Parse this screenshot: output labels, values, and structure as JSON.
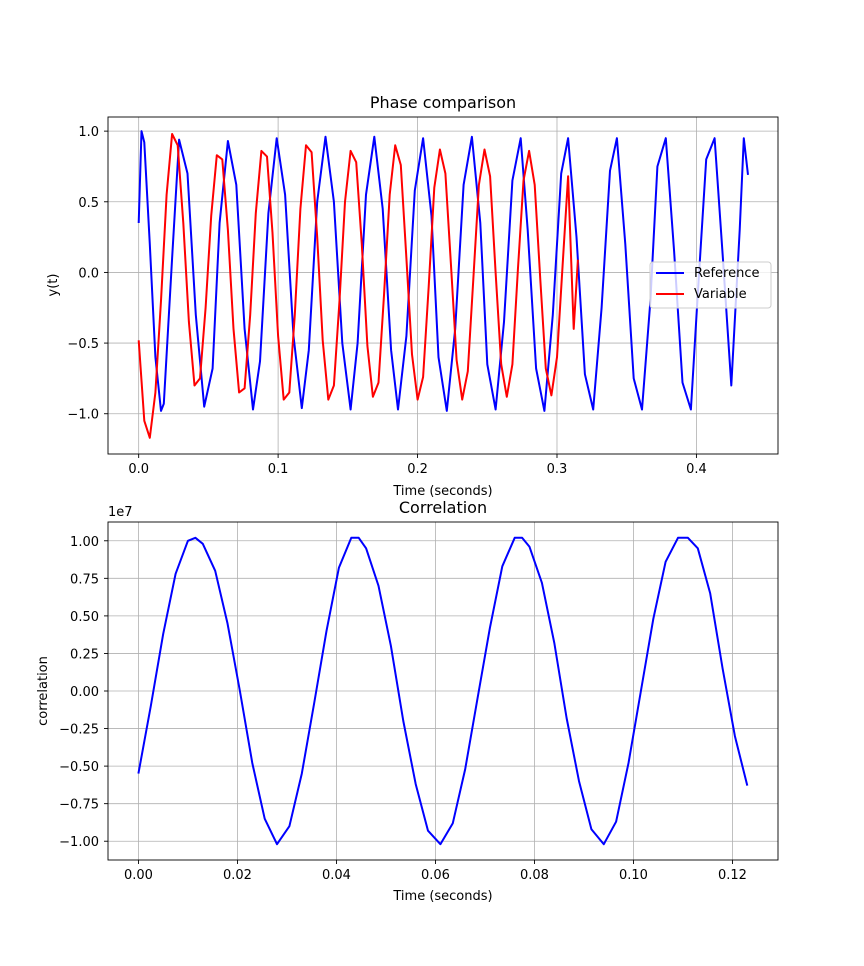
{
  "chart_data": [
    {
      "type": "line",
      "title": "Phase comparison",
      "xlabel": "Time (seconds)",
      "ylabel": "y(t)",
      "xlim": [
        -0.022,
        0.4585
      ],
      "ylim": [
        -1.285,
        1.1
      ],
      "xticks": [
        0.0,
        0.1,
        0.2,
        0.3,
        0.4
      ],
      "xtick_labels": [
        "0.0",
        "0.1",
        "0.2",
        "0.3",
        "0.4"
      ],
      "yticks": [
        1.0,
        0.5,
        0.0,
        -0.5,
        -1.0
      ],
      "ytick_labels": [
        "1.0",
        "0.5",
        "0.0",
        "−0.5",
        "−1.0"
      ],
      "grid": true,
      "legend_position": "center-right",
      "series": [
        {
          "name": "Reference",
          "color": "#0000ff",
          "x": [
            0.0,
            0.002,
            0.004,
            0.008,
            0.012,
            0.016,
            0.018,
            0.024,
            0.029,
            0.035,
            0.041,
            0.047,
            0.053,
            0.058,
            0.064,
            0.07,
            0.076,
            0.082,
            0.087,
            0.093,
            0.099,
            0.105,
            0.111,
            0.117,
            0.122,
            0.128,
            0.134,
            0.14,
            0.146,
            0.152,
            0.157,
            0.163,
            0.169,
            0.175,
            0.181,
            0.186,
            0.192,
            0.198,
            0.204,
            0.21,
            0.215,
            0.221,
            0.227,
            0.233,
            0.239,
            0.245,
            0.25,
            0.256,
            0.262,
            0.268,
            0.274,
            0.279,
            0.285,
            0.291,
            0.297,
            0.303,
            0.308,
            0.314,
            0.32,
            0.326,
            0.332,
            0.338,
            0.343,
            0.349,
            0.355,
            0.361,
            0.367,
            0.372,
            0.378,
            0.384,
            0.39,
            0.396,
            0.401,
            0.407,
            0.413,
            0.419,
            0.425,
            0.431,
            0.434,
            0.437
          ],
          "y": [
            0.35,
            1.0,
            0.92,
            0.2,
            -0.6,
            -0.98,
            -0.93,
            0.1,
            0.94,
            0.7,
            -0.3,
            -0.95,
            -0.68,
            0.35,
            0.93,
            0.62,
            -0.4,
            -0.97,
            -0.63,
            0.42,
            0.95,
            0.55,
            -0.45,
            -0.96,
            -0.55,
            0.5,
            0.96,
            0.5,
            -0.5,
            -0.97,
            -0.5,
            0.55,
            0.96,
            0.45,
            -0.55,
            -0.97,
            -0.45,
            0.58,
            0.95,
            0.4,
            -0.6,
            -0.98,
            -0.4,
            0.62,
            0.96,
            0.35,
            -0.65,
            -0.97,
            -0.35,
            0.65,
            0.95,
            0.3,
            -0.68,
            -0.98,
            -0.3,
            0.7,
            0.95,
            0.25,
            -0.72,
            -0.97,
            -0.25,
            0.72,
            0.95,
            0.2,
            -0.75,
            -0.97,
            -0.2,
            0.75,
            0.95,
            0.15,
            -0.78,
            -0.97,
            -0.15,
            0.8,
            0.95,
            0.1,
            -0.8,
            0.3,
            0.95,
            0.69
          ]
        },
        {
          "name": "Variable",
          "color": "#ff0000",
          "x": [
            0.0,
            0.004,
            0.008,
            0.012,
            0.016,
            0.02,
            0.024,
            0.028,
            0.032,
            0.036,
            0.04,
            0.044,
            0.048,
            0.052,
            0.056,
            0.06,
            0.064,
            0.068,
            0.072,
            0.076,
            0.08,
            0.084,
            0.088,
            0.092,
            0.096,
            0.1,
            0.104,
            0.108,
            0.112,
            0.116,
            0.12,
            0.124,
            0.128,
            0.132,
            0.136,
            0.14,
            0.144,
            0.148,
            0.152,
            0.156,
            0.16,
            0.164,
            0.168,
            0.172,
            0.176,
            0.18,
            0.184,
            0.188,
            0.192,
            0.196,
            0.2,
            0.204,
            0.208,
            0.212,
            0.216,
            0.22,
            0.224,
            0.228,
            0.232,
            0.236,
            0.24,
            0.244,
            0.248,
            0.252,
            0.256,
            0.26,
            0.264,
            0.268,
            0.272,
            0.276,
            0.28,
            0.284,
            0.288,
            0.292,
            0.296,
            0.3,
            0.304,
            0.308,
            0.312,
            0.315
          ],
          "y": [
            -0.48,
            -1.05,
            -1.17,
            -0.85,
            -0.2,
            0.55,
            0.98,
            0.9,
            0.35,
            -0.35,
            -0.8,
            -0.75,
            -0.25,
            0.4,
            0.83,
            0.8,
            0.3,
            -0.4,
            -0.85,
            -0.82,
            -0.3,
            0.42,
            0.86,
            0.82,
            0.28,
            -0.45,
            -0.9,
            -0.85,
            -0.3,
            0.45,
            0.9,
            0.85,
            0.25,
            -0.48,
            -0.9,
            -0.8,
            -0.2,
            0.5,
            0.86,
            0.78,
            0.2,
            -0.52,
            -0.88,
            -0.78,
            -0.15,
            0.55,
            0.9,
            0.76,
            0.1,
            -0.58,
            -0.9,
            -0.74,
            -0.1,
            0.6,
            0.87,
            0.7,
            0.05,
            -0.62,
            -0.9,
            -0.7,
            -0.05,
            0.62,
            0.87,
            0.68,
            0.0,
            -0.65,
            -0.88,
            -0.65,
            0.02,
            0.65,
            0.86,
            0.62,
            -0.05,
            -0.68,
            -0.87,
            -0.6,
            0.05,
            0.68,
            -0.4,
            0.09
          ]
        }
      ]
    },
    {
      "type": "line",
      "title": "Correlation",
      "xlabel": "Time (seconds)",
      "ylabel": "correlation",
      "offset_text": "1e7",
      "xlim": [
        -0.00615,
        0.1292
      ],
      "ylim": [
        -1.125,
        1.125
      ],
      "xticks": [
        0.0,
        0.02,
        0.04,
        0.06,
        0.08,
        0.1,
        0.12
      ],
      "xtick_labels": [
        "0.00",
        "0.02",
        "0.04",
        "0.06",
        "0.08",
        "0.10",
        "0.12"
      ],
      "yticks": [
        1.0,
        0.75,
        0.5,
        0.25,
        0.0,
        -0.25,
        -0.5,
        -0.75,
        -1.0
      ],
      "ytick_labels": [
        "1.00",
        "0.75",
        "0.50",
        "0.25",
        "0.00",
        "−0.25",
        "−0.50",
        "−0.75",
        "−1.00"
      ],
      "grid": true,
      "series": [
        {
          "color": "#0000ff",
          "x": [
            0.0,
            0.0025,
            0.005,
            0.0075,
            0.01,
            0.0115,
            0.013,
            0.0155,
            0.018,
            0.0205,
            0.023,
            0.0255,
            0.028,
            0.0305,
            0.033,
            0.0355,
            0.038,
            0.0405,
            0.043,
            0.0445,
            0.046,
            0.0485,
            0.051,
            0.0535,
            0.056,
            0.0585,
            0.061,
            0.0635,
            0.066,
            0.0685,
            0.071,
            0.0735,
            0.076,
            0.0775,
            0.079,
            0.0815,
            0.084,
            0.0865,
            0.089,
            0.0915,
            0.094,
            0.0965,
            0.099,
            0.1015,
            0.104,
            0.1065,
            0.109,
            0.111,
            0.113,
            0.1155,
            0.118,
            0.1205,
            0.123
          ],
          "y": [
            -0.55,
            -0.1,
            0.38,
            0.78,
            1.0,
            1.02,
            0.98,
            0.8,
            0.45,
            0.0,
            -0.48,
            -0.85,
            -1.02,
            -0.9,
            -0.55,
            -0.08,
            0.4,
            0.82,
            1.02,
            1.02,
            0.95,
            0.7,
            0.3,
            -0.2,
            -0.62,
            -0.93,
            -1.02,
            -0.88,
            -0.52,
            -0.05,
            0.42,
            0.83,
            1.02,
            1.02,
            0.96,
            0.72,
            0.32,
            -0.18,
            -0.6,
            -0.92,
            -1.02,
            -0.87,
            -0.48,
            0.0,
            0.48,
            0.86,
            1.02,
            1.02,
            0.95,
            0.65,
            0.15,
            -0.3,
            -0.63
          ]
        }
      ]
    }
  ]
}
